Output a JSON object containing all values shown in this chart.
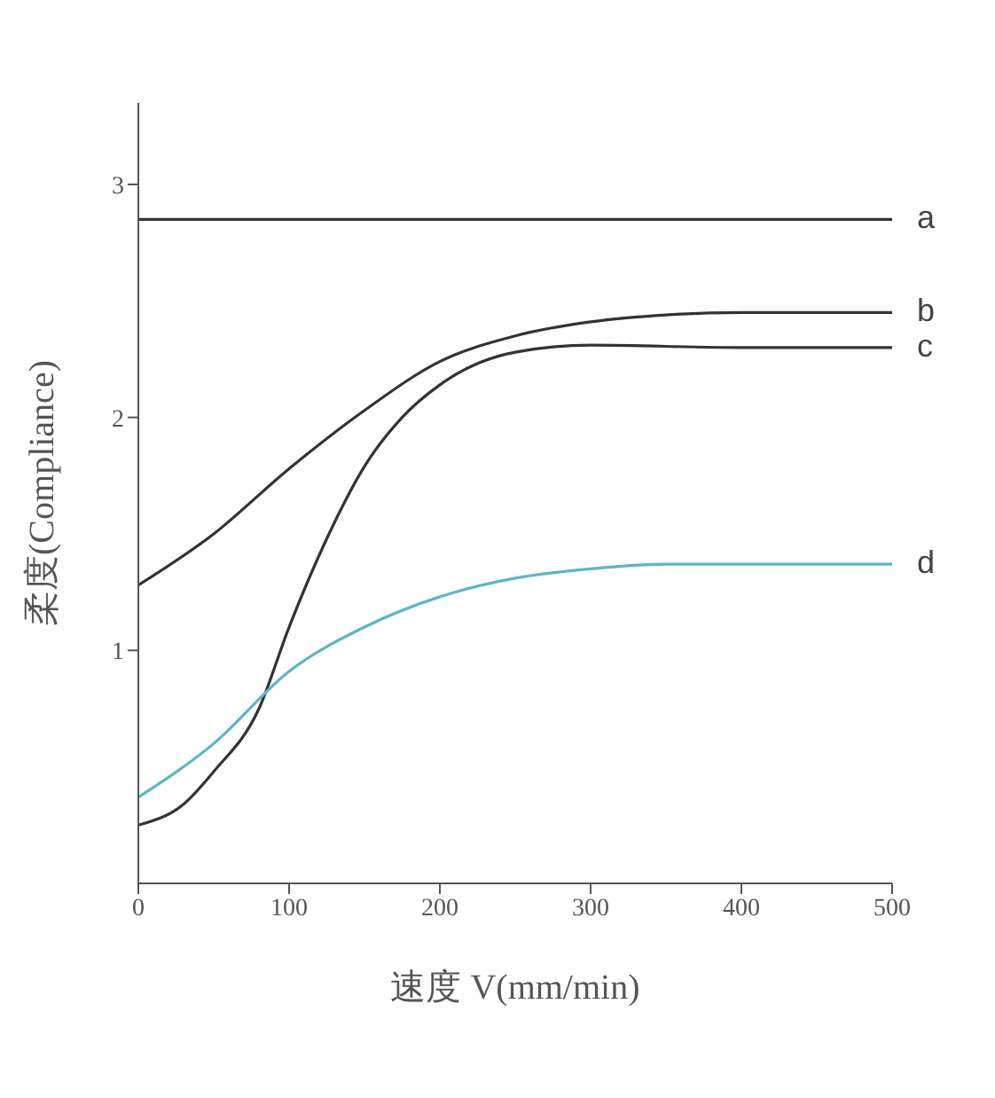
{
  "chart_data": {
    "type": "line",
    "xlabel": "速度 V(mm/min)",
    "ylabel": "柔度(Compliance)",
    "xlim": [
      0,
      500
    ],
    "xticks": [
      0,
      100,
      200,
      300,
      400,
      500
    ],
    "ylim": [
      0,
      3.35
    ],
    "yticks": [
      1,
      2,
      3
    ],
    "grid": false,
    "legend": false,
    "marker": "none",
    "line_style": "solid",
    "series": [
      {
        "name": "a",
        "color": "#333333",
        "x": [
          0,
          500
        ],
        "values": [
          2.85,
          2.85
        ]
      },
      {
        "name": "b",
        "color": "#333333",
        "x": [
          0,
          50,
          100,
          150,
          200,
          250,
          300,
          350,
          400,
          500
        ],
        "values": [
          1.28,
          1.5,
          1.78,
          2.03,
          2.24,
          2.35,
          2.41,
          2.44,
          2.45,
          2.45
        ]
      },
      {
        "name": "c",
        "color": "#333333",
        "x": [
          0,
          30,
          50,
          80,
          100,
          125,
          150,
          175,
          200,
          250,
          300,
          400,
          500
        ],
        "values": [
          0.25,
          0.34,
          0.48,
          0.75,
          1.1,
          1.48,
          1.79,
          2.0,
          2.14,
          2.28,
          2.31,
          2.3,
          2.3
        ]
      },
      {
        "name": "d",
        "color": "#5fb4c8",
        "x": [
          0,
          50,
          100,
          150,
          200,
          250,
          300,
          350,
          400,
          500
        ],
        "values": [
          0.37,
          0.6,
          0.91,
          1.1,
          1.23,
          1.31,
          1.35,
          1.37,
          1.37,
          1.37
        ]
      }
    ]
  }
}
